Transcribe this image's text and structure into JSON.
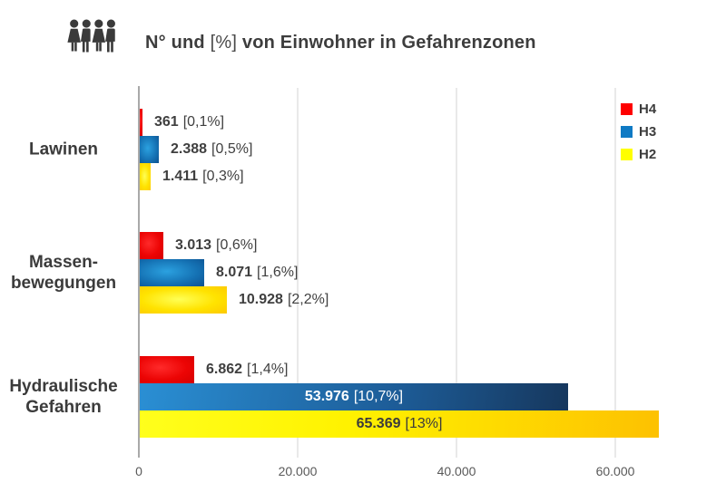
{
  "title": {
    "prefix": "N° und ",
    "percent": "[%]",
    "suffix": " von Einwohner in Gefahrenzonen"
  },
  "icon": "people-group-icon",
  "legend": {
    "items": [
      {
        "label": "H4",
        "color": "#fe0000"
      },
      {
        "label": "H3",
        "color": "#0f7ac4"
      },
      {
        "label": "H2",
        "color": "#ffff00"
      }
    ]
  },
  "chart_data": {
    "type": "bar",
    "orientation": "horizontal",
    "title": "N° und [%] von Einwohner in Gefahrenzonen",
    "categories": [
      {
        "key": "lawinen",
        "lines": [
          "Lawinen"
        ]
      },
      {
        "key": "massenbewegungen",
        "lines": [
          "Massen-",
          "bewegungen"
        ]
      },
      {
        "key": "hydraulische-gefahren",
        "lines": [
          "Hydraulische",
          "Gefahren"
        ]
      }
    ],
    "series": [
      {
        "name": "H4",
        "color": "#ec0404",
        "values": [
          361,
          3013,
          6862
        ],
        "value_labels": [
          "361",
          "3.013",
          "6.862"
        ],
        "pct_labels": [
          "[0,1%]",
          "[0,6%]",
          "[1,4%]"
        ],
        "label_inside": [
          false,
          false,
          false
        ]
      },
      {
        "name": "H3",
        "color": "#1470b2",
        "values": [
          2388,
          8071,
          53976
        ],
        "value_labels": [
          "2.388",
          "8.071",
          "53.976"
        ],
        "pct_labels": [
          "[0,5%]",
          "[1,6%]",
          "[10,7%]"
        ],
        "label_inside": [
          false,
          false,
          true
        ]
      },
      {
        "name": "H2",
        "color": "#ffd900",
        "values": [
          1411,
          10928,
          65369
        ],
        "value_labels": [
          "1.411",
          "10.928",
          "65.369"
        ],
        "pct_labels": [
          "[0,3%]",
          "[2,2%]",
          "[13%]"
        ],
        "label_inside": [
          false,
          false,
          true
        ]
      }
    ],
    "x_ticks": {
      "values": [
        0,
        20000,
        40000,
        60000
      ],
      "labels": [
        "0",
        "20.000",
        "40.000",
        "60.000"
      ]
    },
    "xlim": [
      0,
      74000
    ],
    "grid": true,
    "legend_position": "top-right",
    "legend_entries": [
      "H4",
      "H3",
      "H2"
    ]
  }
}
